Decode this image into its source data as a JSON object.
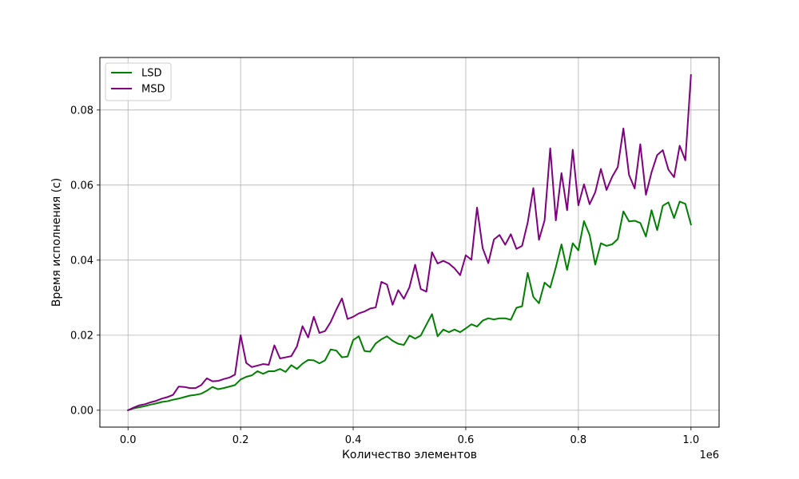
{
  "chart_data": {
    "type": "line",
    "title": "",
    "xlabel": "Количество элементов",
    "ylabel": "Время исполнения (с)",
    "x_offset_label": "1e6",
    "xlim": [
      -50000,
      1050000
    ],
    "ylim": [
      -0.0045,
      0.094
    ],
    "x_ticks": [
      0,
      200000,
      400000,
      600000,
      800000,
      1000000
    ],
    "x_tick_labels": [
      "0.0",
      "0.2",
      "0.4",
      "0.6",
      "0.8",
      "1.0"
    ],
    "y_ticks": [
      0,
      0.02,
      0.04,
      0.06,
      0.08
    ],
    "y_tick_labels": [
      "0.00",
      "0.02",
      "0.04",
      "0.06",
      "0.08"
    ],
    "grid": true,
    "legend_position": "top-left",
    "x": [
      0,
      10000,
      20000,
      30000,
      40000,
      50000,
      60000,
      70000,
      80000,
      90000,
      100000,
      110000,
      120000,
      130000,
      140000,
      150000,
      160000,
      170000,
      180000,
      190000,
      200000,
      210000,
      220000,
      230000,
      240000,
      250000,
      260000,
      270000,
      280000,
      290000,
      300000,
      310000,
      320000,
      330000,
      340000,
      350000,
      360000,
      370000,
      380000,
      390000,
      400000,
      410000,
      420000,
      430000,
      440000,
      450000,
      460000,
      470000,
      480000,
      490000,
      500000,
      510000,
      520000,
      530000,
      540000,
      550000,
      560000,
      570000,
      580000,
      590000,
      600000,
      610000,
      620000,
      630000,
      640000,
      650000,
      660000,
      670000,
      680000,
      690000,
      700000,
      710000,
      720000,
      730000,
      740000,
      750000,
      760000,
      770000,
      780000,
      790000,
      800000,
      810000,
      820000,
      830000,
      840000,
      850000,
      860000,
      870000,
      880000,
      890000,
      900000,
      910000,
      920000,
      930000,
      940000,
      950000,
      960000,
      970000,
      980000,
      990000,
      1000000
    ],
    "series": [
      {
        "name": "LSD",
        "color": "#008000",
        "values": [
          0.0,
          0.0005,
          0.0008,
          0.0011,
          0.0015,
          0.0018,
          0.0022,
          0.0024,
          0.0028,
          0.0031,
          0.0035,
          0.0039,
          0.0041,
          0.0044,
          0.0052,
          0.0062,
          0.0056,
          0.0059,
          0.0063,
          0.0067,
          0.0082,
          0.0089,
          0.0093,
          0.0104,
          0.0097,
          0.0104,
          0.0104,
          0.011,
          0.0102,
          0.012,
          0.011,
          0.0124,
          0.0134,
          0.0133,
          0.0125,
          0.0133,
          0.0162,
          0.0159,
          0.0141,
          0.0143,
          0.0187,
          0.0197,
          0.0158,
          0.0156,
          0.0178,
          0.0189,
          0.0197,
          0.0185,
          0.0177,
          0.0174,
          0.0199,
          0.0191,
          0.0199,
          0.0228,
          0.0256,
          0.0197,
          0.0215,
          0.0208,
          0.0215,
          0.0208,
          0.0218,
          0.0229,
          0.0223,
          0.0239,
          0.0245,
          0.0242,
          0.0245,
          0.0245,
          0.0241,
          0.0273,
          0.0277,
          0.0366,
          0.0302,
          0.0285,
          0.034,
          0.0327,
          0.0381,
          0.0442,
          0.0374,
          0.0445,
          0.0426,
          0.0504,
          0.0467,
          0.0388,
          0.0445,
          0.0438,
          0.0442,
          0.0456,
          0.053,
          0.0503,
          0.0505,
          0.0499,
          0.0463,
          0.0533,
          0.048,
          0.0545,
          0.0554,
          0.0512,
          0.0556,
          0.055,
          0.0495
        ]
      },
      {
        "name": "MSD",
        "color": "#800080",
        "values": [
          0.0,
          0.0007,
          0.0013,
          0.0016,
          0.0021,
          0.0025,
          0.0031,
          0.0035,
          0.0041,
          0.0063,
          0.0062,
          0.0059,
          0.0059,
          0.0067,
          0.0085,
          0.0077,
          0.0078,
          0.0083,
          0.0087,
          0.0095,
          0.02,
          0.0126,
          0.0115,
          0.0119,
          0.0123,
          0.0121,
          0.0173,
          0.0138,
          0.0141,
          0.0144,
          0.017,
          0.0224,
          0.0194,
          0.0249,
          0.0206,
          0.0211,
          0.0235,
          0.0268,
          0.0298,
          0.0243,
          0.0249,
          0.0258,
          0.0263,
          0.0271,
          0.0274,
          0.0342,
          0.0335,
          0.0281,
          0.032,
          0.0297,
          0.0328,
          0.0388,
          0.0323,
          0.0316,
          0.0421,
          0.0391,
          0.0398,
          0.0391,
          0.0378,
          0.036,
          0.0413,
          0.0401,
          0.054,
          0.0432,
          0.0392,
          0.0455,
          0.0467,
          0.0441,
          0.0469,
          0.043,
          0.0438,
          0.05,
          0.0592,
          0.0454,
          0.0506,
          0.0698,
          0.0506,
          0.0632,
          0.0533,
          0.0694,
          0.0546,
          0.0602,
          0.0549,
          0.0581,
          0.0643,
          0.0587,
          0.0622,
          0.0648,
          0.0751,
          0.0627,
          0.0591,
          0.0709,
          0.0574,
          0.0634,
          0.068,
          0.0693,
          0.0641,
          0.0621,
          0.0705,
          0.0666,
          0.0893
        ]
      }
    ]
  }
}
